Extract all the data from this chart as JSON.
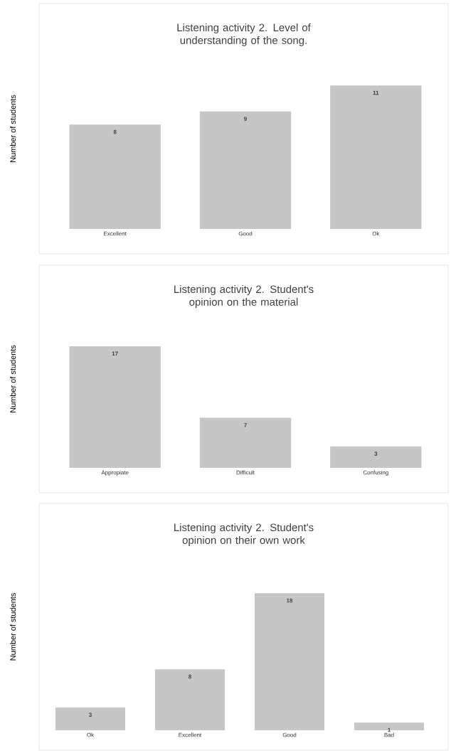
{
  "chart_data": [
    {
      "type": "bar",
      "title": "Listening activity 2. Level of understanding of the song.",
      "ylabel": "Number of students",
      "categories": [
        "Excellent",
        "Good",
        "Ok"
      ],
      "values": [
        8,
        9,
        11
      ],
      "color": "#c6c6c6",
      "data_labels": true
    },
    {
      "type": "bar",
      "title": "Listening activity 2. Student's opinion on the material",
      "ylabel": "Number of students",
      "categories": [
        "Appropiate",
        "Difficult",
        "Confusing"
      ],
      "values": [
        17,
        7,
        3
      ],
      "color": "#c6c6c6",
      "data_labels": true
    },
    {
      "type": "bar",
      "title": "Listening activity 2. Student's opinion on their own work",
      "ylabel": "Number of students",
      "categories": [
        "Ok",
        "Excellent",
        "Good",
        "Bad"
      ],
      "values": [
        3,
        8,
        18,
        1
      ],
      "color": "#c6c6c6",
      "data_labels": true
    }
  ]
}
